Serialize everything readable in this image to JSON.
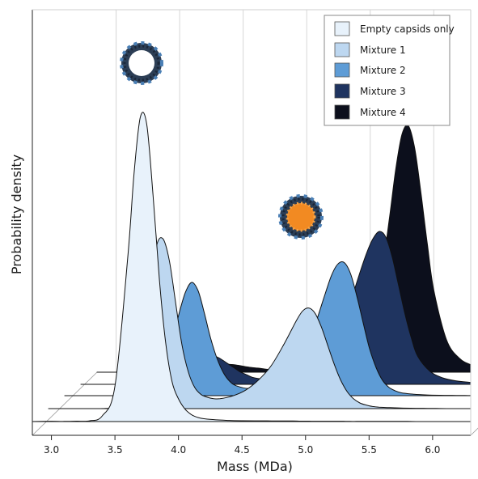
{
  "chart_data": {
    "type": "area",
    "style": "ridgeline (offset density curves drawn in 3-D perspective)",
    "title": "",
    "xlabel": "Mass (MDa)",
    "ylabel": "Probability density",
    "xlim": [
      2.85,
      6.3
    ],
    "x_ticks": [
      "3.0",
      "3.5",
      "4.0",
      "4.5",
      "5.0",
      "5.5",
      "6.0"
    ],
    "grid": "vertical lines at each x tick",
    "legend_position": "top-right",
    "x": [
      2.85,
      3.0,
      3.1,
      3.2,
      3.3,
      3.4,
      3.5,
      3.6,
      3.65,
      3.7,
      3.75,
      3.8,
      3.85,
      3.9,
      3.95,
      4.0,
      4.05,
      4.1,
      4.15,
      4.2,
      4.3,
      4.4,
      4.5,
      4.6,
      4.7,
      4.8,
      4.85,
      4.9,
      4.95,
      5.0,
      5.05,
      5.1,
      5.15,
      5.2,
      5.25,
      5.3,
      5.35,
      5.4,
      5.45,
      5.5,
      5.6,
      5.7,
      5.8,
      5.9,
      6.0,
      6.1,
      6.2,
      6.3
    ],
    "series": [
      {
        "name": "Empty capsids only",
        "color": "#e8f2fb",
        "values": [
          0.0,
          0.02,
          0.01,
          0.03,
          0.05,
          0.4,
          2.5,
          11.5,
          17.5,
          21.5,
          21.0,
          16.0,
          10.0,
          5.5,
          2.8,
          1.6,
          0.9,
          0.5,
          0.3,
          0.2,
          0.12,
          0.08,
          0.06,
          0.05,
          0.05,
          0.04,
          0.04,
          0.04,
          0.03,
          0.03,
          0.02,
          0.02,
          0.02,
          0.02,
          0.02,
          0.02,
          0.01,
          0.01,
          0.01,
          0.01,
          0.01,
          0.01,
          0.01,
          0.0,
          0.0,
          0.0,
          0.0,
          0.0
        ]
      },
      {
        "name": "Mixture 1",
        "color": "#bdd7f0",
        "values": [
          0.0,
          0.0,
          0.0,
          0.0,
          0.01,
          0.1,
          0.8,
          4.5,
          8.5,
          11.5,
          12.0,
          10.5,
          7.5,
          4.5,
          2.6,
          1.5,
          1.0,
          0.8,
          0.7,
          0.7,
          0.9,
          1.3,
          2.0,
          3.0,
          4.5,
          6.2,
          6.9,
          7.1,
          6.7,
          5.7,
          4.4,
          3.1,
          2.0,
          1.2,
          0.7,
          0.4,
          0.25,
          0.15,
          0.1,
          0.08,
          0.05,
          0.03,
          0.02,
          0.01,
          0.0,
          0.0,
          0.0,
          0.0
        ]
      },
      {
        "name": "Mixture 2",
        "color": "#5e9cd6",
        "values": [
          0.0,
          0.0,
          0.0,
          0.0,
          0.0,
          0.02,
          0.2,
          1.2,
          2.5,
          4.0,
          5.8,
          7.3,
          8.0,
          7.4,
          5.8,
          4.0,
          2.6,
          1.6,
          1.0,
          0.7,
          0.5,
          0.6,
          0.9,
          1.5,
          2.7,
          4.5,
          5.8,
          7.2,
          8.5,
          9.3,
          9.4,
          8.6,
          7.0,
          5.1,
          3.3,
          2.0,
          1.1,
          0.6,
          0.35,
          0.2,
          0.1,
          0.05,
          0.03,
          0.02,
          0.01,
          0.0,
          0.0,
          0.0
        ]
      },
      {
        "name": "Mixture 3",
        "color": "#1f3460",
        "values": [
          0.0,
          0.0,
          0.0,
          0.0,
          0.0,
          0.01,
          0.05,
          0.3,
          0.6,
          1.0,
          1.4,
          1.8,
          2.0,
          2.0,
          1.8,
          1.5,
          1.2,
          0.9,
          0.7,
          0.5,
          0.35,
          0.3,
          0.4,
          0.7,
          1.2,
          2.2,
          3.0,
          4.0,
          5.2,
          6.6,
          8.0,
          9.3,
          10.3,
          10.8,
          10.4,
          9.0,
          7.0,
          5.0,
          3.3,
          2.0,
          0.9,
          0.45,
          0.25,
          0.15,
          0.1,
          0.06,
          0.04,
          0.02
        ]
      },
      {
        "name": "Mixture 4",
        "color": "#0c0f1c",
        "values": [
          0.0,
          0.0,
          0.0,
          0.0,
          0.0,
          0.0,
          0.02,
          0.1,
          0.2,
          0.3,
          0.4,
          0.5,
          0.55,
          0.55,
          0.5,
          0.42,
          0.35,
          0.3,
          0.25,
          0.2,
          0.18,
          0.2,
          0.25,
          0.35,
          0.5,
          0.8,
          1.1,
          1.6,
          2.4,
          3.6,
          5.2,
          7.6,
          10.8,
          14.3,
          16.8,
          17.4,
          15.8,
          12.6,
          9.0,
          5.8,
          2.3,
          1.0,
          0.5,
          0.3,
          0.2,
          0.15,
          0.1,
          0.08
        ]
      }
    ],
    "inset_images": [
      "empty-capsid-ring",
      "filled-capsid-orange-core"
    ]
  }
}
